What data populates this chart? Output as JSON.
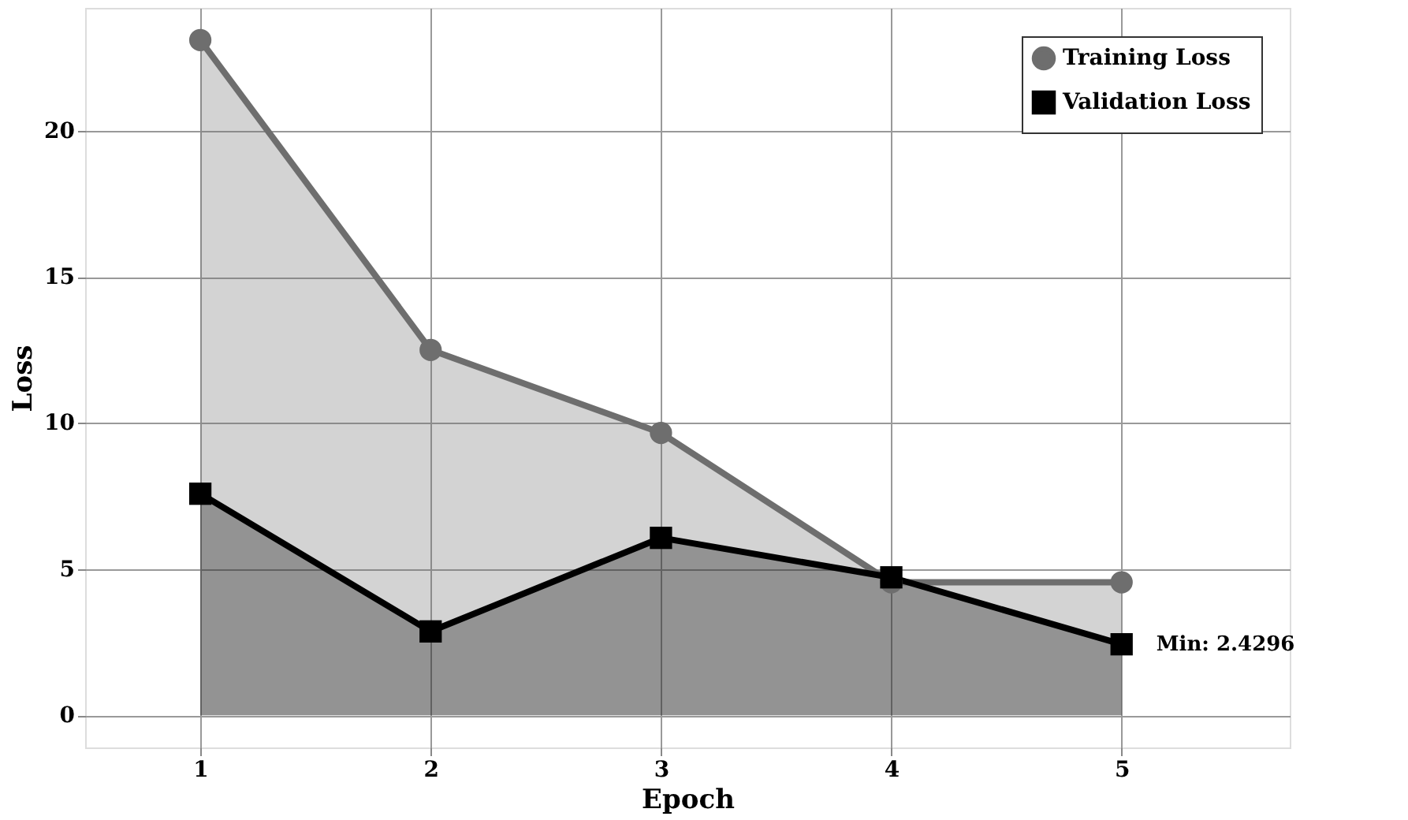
{
  "chart_data": {
    "type": "area",
    "xlabel": "Epoch",
    "ylabel": "Loss",
    "x": [
      1,
      2,
      3,
      4,
      5
    ],
    "series": [
      {
        "name": "Training Loss",
        "color": "#6e6e6e",
        "marker": "circle",
        "values": [
          23.1,
          12.5,
          9.66,
          4.55,
          4.55
        ]
      },
      {
        "name": "Validation Loss",
        "color": "#000000",
        "marker": "square",
        "values": [
          7.58,
          2.87,
          6.07,
          4.72,
          2.4296
        ]
      }
    ],
    "xlim": [
      0.5,
      5.73
    ],
    "ylim": [
      -1.1,
      24.2
    ],
    "xticks": [
      1,
      2,
      3,
      4,
      5
    ],
    "yticks": [
      0,
      5,
      10,
      15,
      20
    ],
    "grid": true,
    "legend": "top right",
    "annotations": [
      {
        "text": "Min: 2.4296",
        "x": 5,
        "y": 2.4296
      }
    ]
  }
}
